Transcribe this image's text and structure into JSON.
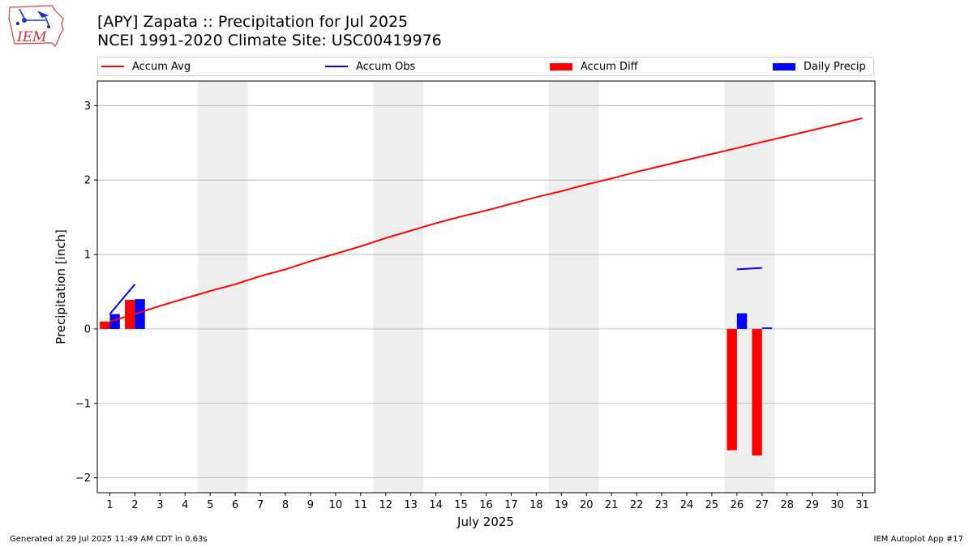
{
  "header": {
    "logo_text": "IEM",
    "title_line1": "[APY] Zapata :: Precipitation for Jul 2025",
    "title_line2": "NCEI 1991-2020 Climate Site: USC00419976"
  },
  "legend": {
    "placement": "top",
    "items": [
      {
        "label": "Accum Avg",
        "kind": "line",
        "color": "#ff0000"
      },
      {
        "label": "Accum Obs",
        "kind": "line",
        "color": "#0000ff"
      },
      {
        "label": "Accum Diff",
        "kind": "patch",
        "color": "#ff0000"
      },
      {
        "label": "Daily Precip",
        "kind": "patch",
        "color": "#0000ff"
      }
    ]
  },
  "footer": {
    "left": "Generated at 29 Jul 2025 11:49 AM CDT in 0.63s",
    "right": "IEM Autoplot App #17"
  },
  "chart_data": {
    "type": "bar",
    "xlabel": "July 2025",
    "ylabel": "Precipitation [inch]",
    "xlim": [
      0.5,
      31.5
    ],
    "ylim": [
      -2.2,
      3.33
    ],
    "yticks": [
      -2,
      -1,
      0,
      1,
      2,
      3
    ],
    "ytick_labels": [
      "−2",
      "−1",
      "0",
      "1",
      "2",
      "3"
    ],
    "days": [
      1,
      2,
      3,
      4,
      5,
      6,
      7,
      8,
      9,
      10,
      11,
      12,
      13,
      14,
      15,
      16,
      17,
      18,
      19,
      20,
      21,
      22,
      23,
      24,
      25,
      26,
      27,
      28,
      29,
      30,
      31
    ],
    "grid": "horizontal",
    "weekend_shading": [
      [
        4.5,
        6.5
      ],
      [
        11.5,
        13.5
      ],
      [
        18.5,
        20.5
      ],
      [
        25.5,
        27.5
      ]
    ],
    "colors": {
      "avg": "#ff0000",
      "obs": "#0000ff",
      "diff": "#ff0000",
      "daily": "#0000ff",
      "shade": "#eeeeee",
      "grid": "#b0b0b0"
    },
    "accum_avg": [
      0.1,
      0.2,
      0.31,
      0.41,
      0.51,
      0.6,
      0.71,
      0.8,
      0.91,
      1.01,
      1.11,
      1.22,
      1.32,
      1.42,
      1.51,
      1.59,
      1.68,
      1.77,
      1.85,
      1.94,
      2.02,
      2.11,
      2.19,
      2.27,
      2.35,
      2.43,
      2.51,
      2.59,
      2.67,
      2.75,
      2.83
    ],
    "accum_obs": [
      0.2,
      0.6,
      null,
      null,
      null,
      null,
      null,
      null,
      null,
      null,
      null,
      null,
      null,
      null,
      null,
      null,
      null,
      null,
      null,
      null,
      null,
      null,
      null,
      null,
      null,
      0.8,
      0.82,
      null,
      null,
      null,
      null
    ],
    "accum_diff": [
      0.1,
      0.39,
      null,
      null,
      null,
      null,
      null,
      null,
      null,
      null,
      null,
      null,
      null,
      null,
      null,
      null,
      null,
      null,
      null,
      null,
      null,
      null,
      null,
      null,
      null,
      -1.63,
      -1.7,
      null,
      null,
      null,
      null
    ],
    "daily_precip": [
      0.2,
      0.4,
      null,
      null,
      null,
      null,
      null,
      null,
      null,
      null,
      null,
      null,
      null,
      null,
      null,
      null,
      null,
      null,
      null,
      null,
      null,
      null,
      null,
      null,
      null,
      0.21,
      0.02,
      null,
      null,
      null,
      null
    ]
  }
}
